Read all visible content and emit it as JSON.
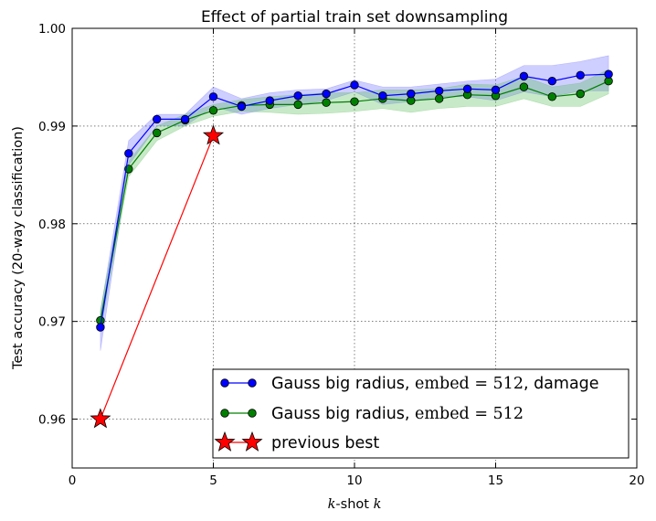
{
  "chart_data": {
    "type": "line",
    "title": "Effect of partial train set downsampling",
    "xlabel_text": "-shot ",
    "xlabel_math_prefix": "k",
    "xlabel_math_suffix": "k",
    "ylabel": "Test accuracy (20-way classification)",
    "xlim": [
      0,
      20
    ],
    "ylim": [
      0.955,
      1.0
    ],
    "xticks": [
      0,
      5,
      10,
      15,
      20
    ],
    "xtick_labels": [
      "0",
      "5",
      "10",
      "15",
      "20"
    ],
    "yticks": [
      0.96,
      0.97,
      0.98,
      0.99,
      1.0
    ],
    "ytick_labels": [
      "0.96",
      "0.97",
      "0.98",
      "0.99",
      "1.00"
    ],
    "grid": true,
    "legend_position": "lower-right",
    "series": [
      {
        "name": "Gauss big radius, embed = 512, damage",
        "legend_text": "Gauss big radius, ",
        "legend_math": "embed = 512",
        "legend_suffix": ", damage",
        "color": "#0000ff",
        "band_color": "#6666ff",
        "marker": "circle",
        "x": [
          1,
          2,
          3,
          4,
          5,
          6,
          7,
          8,
          9,
          10,
          11,
          12,
          13,
          14,
          15,
          16,
          17,
          18,
          19
        ],
        "y": [
          0.9694,
          0.9872,
          0.9907,
          0.9907,
          0.993,
          0.992,
          0.9926,
          0.9931,
          0.9933,
          0.9942,
          0.9931,
          0.9933,
          0.9936,
          0.9938,
          0.9937,
          0.9951,
          0.9946,
          0.9952,
          0.9953
        ],
        "y_low": [
          0.967,
          0.986,
          0.99,
          0.99,
          0.992,
          0.9912,
          0.9918,
          0.9922,
          0.9926,
          0.9935,
          0.9922,
          0.9925,
          0.993,
          0.993,
          0.9926,
          0.9935,
          0.993,
          0.9936,
          0.9936
        ],
        "y_high": [
          0.971,
          0.9885,
          0.9912,
          0.9912,
          0.994,
          0.9928,
          0.9934,
          0.9937,
          0.9938,
          0.9947,
          0.994,
          0.994,
          0.9943,
          0.9946,
          0.9948,
          0.9962,
          0.9962,
          0.9966,
          0.9972
        ]
      },
      {
        "name": "Gauss big radius, embed = 512",
        "legend_text": "Gauss big radius, ",
        "legend_math": "embed = 512",
        "legend_suffix": "",
        "color": "#008000",
        "band_color": "#55bb55",
        "marker": "circle",
        "x": [
          1,
          2,
          3,
          4,
          5,
          6,
          7,
          8,
          9,
          10,
          11,
          12,
          13,
          14,
          15,
          16,
          17,
          18,
          19
        ],
        "y": [
          0.9701,
          0.9856,
          0.9893,
          0.9906,
          0.9916,
          0.9921,
          0.9922,
          0.9922,
          0.9924,
          0.9925,
          0.9928,
          0.9926,
          0.9928,
          0.9932,
          0.9931,
          0.994,
          0.993,
          0.9933,
          0.9946
        ],
        "y_low": [
          0.969,
          0.9848,
          0.9885,
          0.99,
          0.991,
          0.9915,
          0.9914,
          0.9912,
          0.9913,
          0.9915,
          0.9918,
          0.9914,
          0.9918,
          0.992,
          0.992,
          0.9928,
          0.992,
          0.992,
          0.9933
        ],
        "y_high": [
          0.9712,
          0.9864,
          0.99,
          0.9912,
          0.9922,
          0.9927,
          0.993,
          0.9932,
          0.9934,
          0.9934,
          0.9937,
          0.9937,
          0.9938,
          0.9943,
          0.9942,
          0.9951,
          0.994,
          0.9944,
          0.9958
        ]
      },
      {
        "name": "previous best",
        "legend_text": "previous best",
        "legend_math": "",
        "legend_suffix": "",
        "color": "#ff0000",
        "marker": "star",
        "x": [
          1,
          5
        ],
        "y": [
          0.96,
          0.989
        ]
      }
    ]
  }
}
